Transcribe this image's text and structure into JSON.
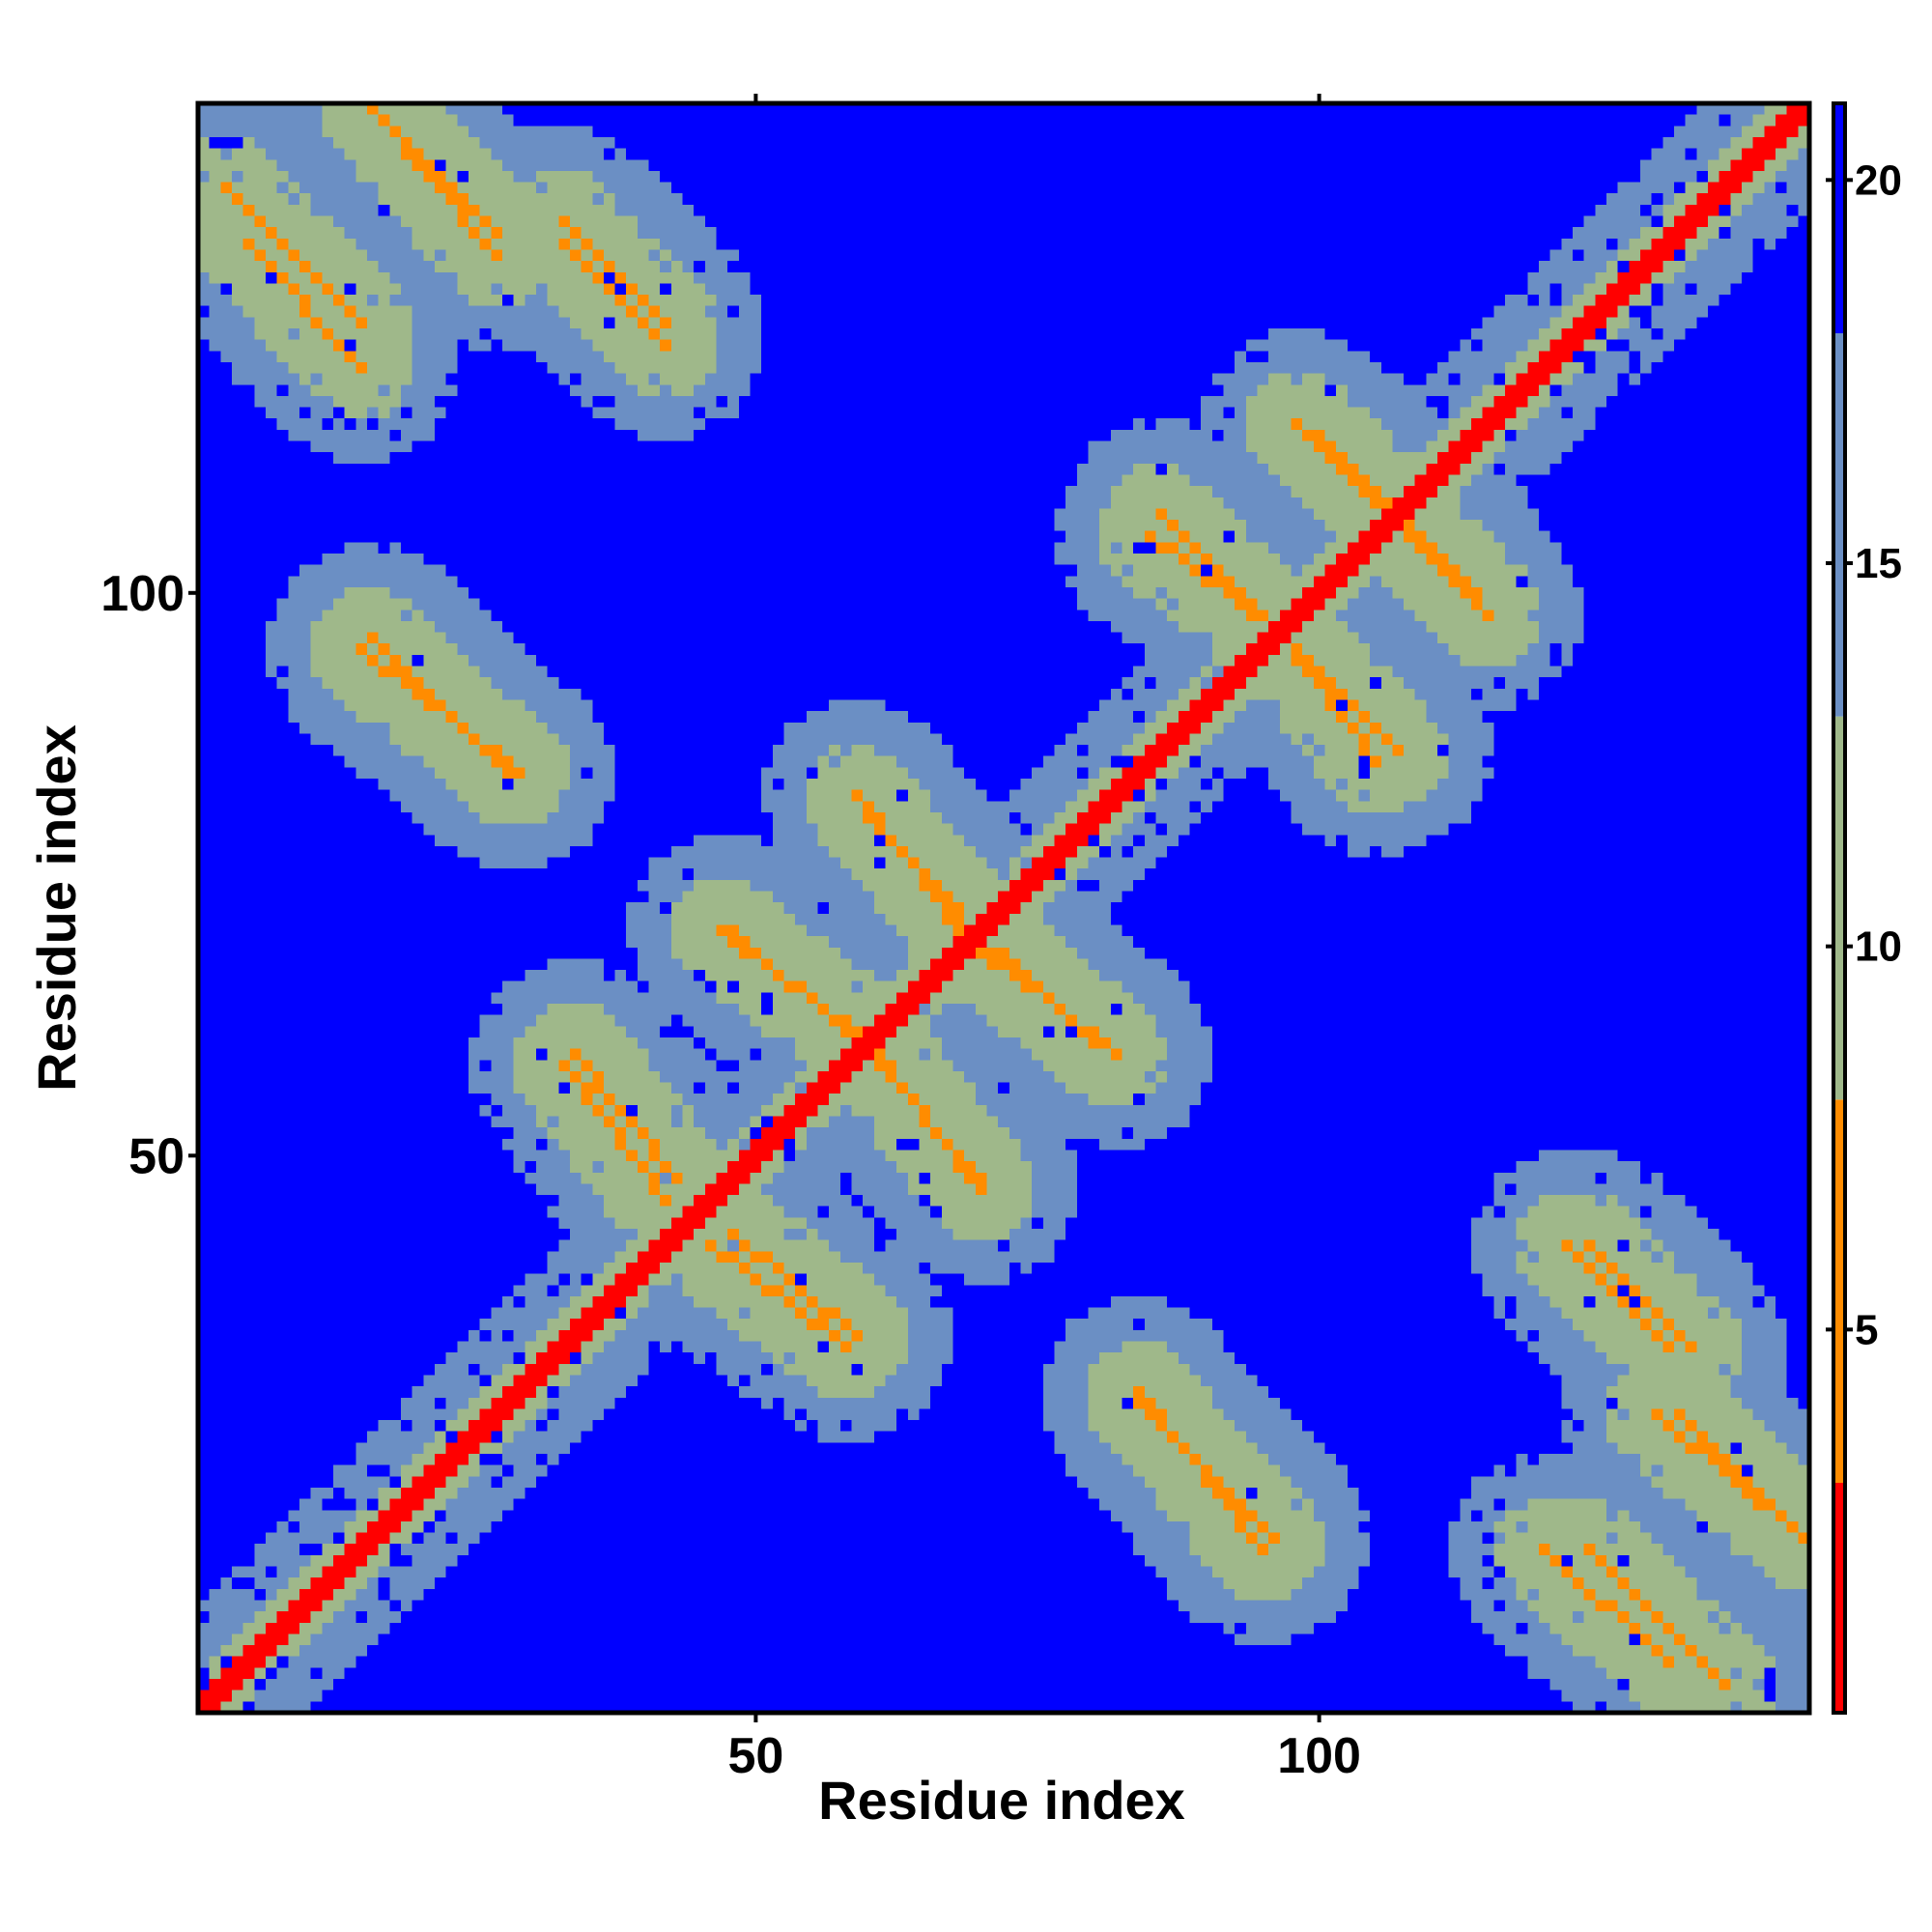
{
  "chart_data": {
    "type": "heatmap",
    "title": "",
    "xlabel": "Residue index",
    "ylabel": "Residue index",
    "x_range": [
      1,
      143
    ],
    "y_range": [
      1,
      143
    ],
    "x_ticks": [
      50,
      100
    ],
    "y_ticks": [
      50,
      100
    ],
    "colorbar": {
      "range": [
        0,
        21
      ],
      "ticks": [
        5,
        10,
        15,
        20
      ],
      "bins": [
        {
          "from": 0,
          "to": 3,
          "color": "#ff0000"
        },
        {
          "from": 3,
          "to": 8,
          "color": "#ff8c00"
        },
        {
          "from": 8,
          "to": 13,
          "color": "#9fb88a"
        },
        {
          "from": 13,
          "to": 18,
          "color": "#6b8fc4"
        },
        {
          "from": 18,
          "to": 21,
          "color": "#0000ff"
        }
      ]
    },
    "main_diagonal": {
      "from": 1,
      "to": 143,
      "value": 1.5
    },
    "contact_bands": [
      {
        "x1": 3,
        "y1": 136,
        "x2": 15,
        "y2": 124,
        "value": 5
      },
      {
        "x1": 17,
        "y1": 142,
        "x2": 27,
        "y2": 132,
        "value": 5
      },
      {
        "x1": 33,
        "y1": 133,
        "x2": 42,
        "y2": 124,
        "value": 5
      },
      {
        "x1": 15,
        "y1": 95,
        "x2": 29,
        "y2": 84,
        "value": 5
      },
      {
        "x1": 34,
        "y1": 59,
        "x2": 43,
        "y2": 48,
        "value": 5
      },
      {
        "x1": 46,
        "y1": 42,
        "x2": 58,
        "y2": 33,
        "value": 5
      },
      {
        "x1": 47,
        "y1": 70,
        "x2": 60,
        "y2": 60,
        "value": 5
      },
      {
        "x1": 60,
        "y1": 80,
        "x2": 68,
        "y2": 72,
        "value": 5
      },
      {
        "x1": 60,
        "y1": 59,
        "x2": 70,
        "y2": 48,
        "value": 5
      },
      {
        "x1": 67,
        "y1": 71,
        "x2": 82,
        "y2": 59,
        "value": 5
      },
      {
        "x1": 85,
        "y1": 105,
        "x2": 97,
        "y2": 96,
        "value": 5
      },
      {
        "x1": 97,
        "y1": 96,
        "x2": 107,
        "y2": 86,
        "value": 5
      },
      {
        "x1": 98,
        "y1": 115,
        "x2": 114,
        "y2": 100,
        "value": 5
      },
      {
        "x1": 84,
        "y1": 28,
        "x2": 96,
        "y2": 16,
        "value": 5
      },
      {
        "x1": 122,
        "y1": 42,
        "x2": 131,
        "y2": 33,
        "value": 5
      },
      {
        "x1": 130,
        "y1": 27,
        "x2": 143,
        "y2": 16,
        "value": 5
      },
      {
        "x1": 120,
        "y1": 15,
        "x2": 131,
        "y2": 5,
        "value": 5
      }
    ],
    "background_value": 21,
    "grid": false,
    "legend": "colorbar-right"
  }
}
